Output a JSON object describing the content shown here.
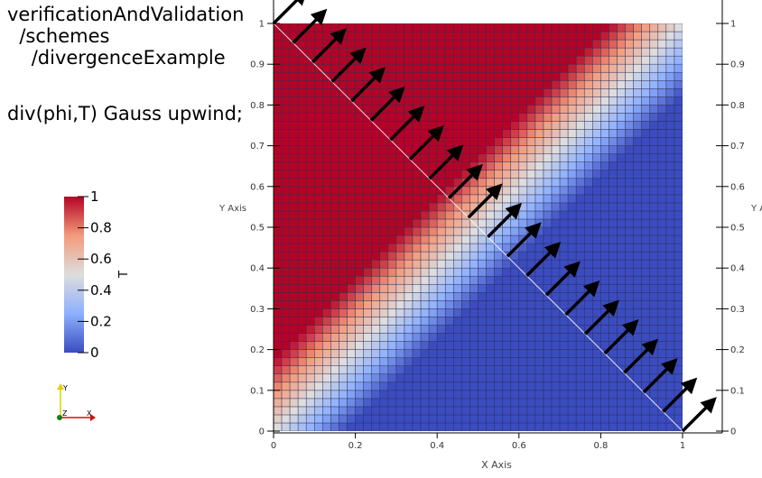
{
  "case_path": {
    "line1": "verificationAndValidation",
    "line2": "  /schemes",
    "line3": "    /divergenceExample"
  },
  "scheme_text": "div(phi,T) Gauss upwind;",
  "colorbar": {
    "title": "T",
    "ticks": [
      "1",
      "0.8",
      "0.6",
      "0.4",
      "0.2",
      "0"
    ],
    "colors": {
      "low": "#3b4cc0",
      "mid": "#dddddd",
      "high": "#b40426"
    }
  },
  "axes": {
    "x_title": "X Axis",
    "y_title": "Y Axis",
    "y_title_right": "Y A",
    "x_ticks": [
      "0",
      "0.2",
      "0.4",
      "0.6",
      "0.8",
      "1"
    ],
    "y_ticks": [
      "0",
      "0.1",
      "0.2",
      "0.3",
      "0.4",
      "0.5",
      "0.6",
      "0.7",
      "0.8",
      "0.9",
      "1"
    ]
  },
  "orientation_axes": {
    "x_label": "X",
    "y_label": "Y",
    "z_label": "Z"
  },
  "field": {
    "name": "T",
    "mesh_cells": 50,
    "diagonal_blend_width": 0.35
  },
  "vectors": {
    "direction": [
      1,
      1
    ],
    "count": 22
  }
}
